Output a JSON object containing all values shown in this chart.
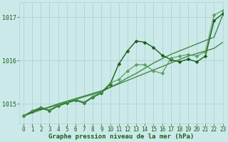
{
  "xlabel": "Graphe pression niveau de la mer (hPa)",
  "xlim": [
    -0.5,
    23
  ],
  "ylim": [
    1014.55,
    1017.35
  ],
  "yticks": [
    1015,
    1016,
    1017
  ],
  "xticks": [
    0,
    1,
    2,
    3,
    4,
    5,
    6,
    7,
    8,
    9,
    10,
    11,
    12,
    13,
    14,
    15,
    16,
    17,
    18,
    19,
    20,
    21,
    22,
    23
  ],
  "bg_color": "#cce9e9",
  "grid_color": "#aad4d4",
  "line_color_dark": "#1a5c1a",
  "line_color_med": "#2d7a2d",
  "line_color_light": "#4a994a",
  "font_color": "#1a5c1a",
  "label_fontsize": 6.5,
  "tick_fontsize": 6,
  "linewidth": 1.0,
  "marker": "D",
  "marker_size": 2.5,
  "series_wiggly1": [
    1014.72,
    1014.82,
    1014.9,
    1014.84,
    1014.95,
    1015.02,
    1015.08,
    1015.02,
    1015.15,
    1015.25,
    1015.45,
    1015.92,
    1016.22,
    1016.45,
    1016.42,
    1016.3,
    1016.12,
    1016.02,
    1015.97,
    1016.03,
    1015.97,
    1016.1,
    1016.92,
    1017.08
  ],
  "series_wiggly2": [
    1014.72,
    1014.84,
    1014.92,
    1014.86,
    1014.97,
    1015.04,
    1015.1,
    1015.04,
    1015.17,
    1015.27,
    1015.48,
    1015.56,
    1015.76,
    1015.9,
    1015.9,
    1015.76,
    1015.7,
    1016.05,
    1016.1,
    1016.14,
    1016.1,
    1016.2,
    1017.05,
    1017.15
  ],
  "series_trend1": [
    1014.72,
    1014.82,
    1014.88,
    1014.92,
    1014.98,
    1015.04,
    1015.1,
    1015.16,
    1015.22,
    1015.28,
    1015.38,
    1015.48,
    1015.6,
    1015.7,
    1015.82,
    1015.94,
    1016.04,
    1016.14,
    1016.22,
    1016.3,
    1016.38,
    1016.46,
    1016.54,
    1017.05
  ],
  "series_trend2": [
    1014.72,
    1014.79,
    1014.86,
    1014.93,
    1015.0,
    1015.06,
    1015.12,
    1015.18,
    1015.24,
    1015.3,
    1015.38,
    1015.46,
    1015.54,
    1015.62,
    1015.7,
    1015.78,
    1015.86,
    1015.94,
    1016.02,
    1016.1,
    1016.16,
    1016.22,
    1016.28,
    1016.42
  ]
}
